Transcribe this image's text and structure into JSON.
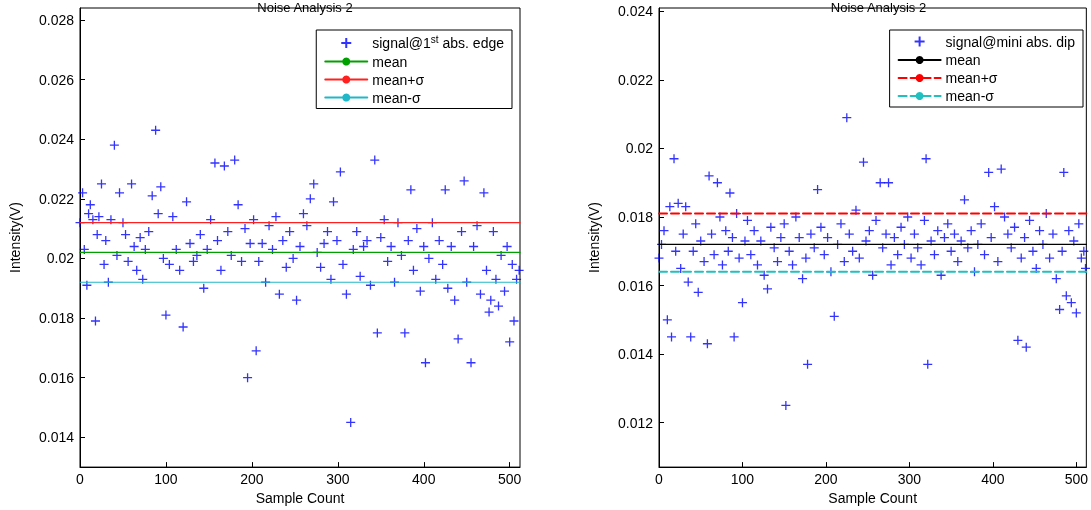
{
  "chart_data": [
    {
      "type": "scatter",
      "title": "Noise Analysis 2",
      "xlabel": "Sample Count",
      "ylabel": "Intensity(V)",
      "xlim": [
        0,
        512
      ],
      "xticks": [
        0,
        100,
        200,
        300,
        400,
        500
      ],
      "ylim": [
        0.013,
        0.0284
      ],
      "yticks": [
        0.014,
        0.016,
        0.018,
        0.02,
        0.022,
        0.024,
        0.026,
        0.028
      ],
      "legend": "top right",
      "series": [
        {
          "name": "signal@1$^{st}$ abs. edge",
          "marker": "cross",
          "color": "#0000ff",
          "x": [
            0,
            3,
            5,
            8,
            10,
            12,
            15,
            18,
            20,
            22,
            25,
            28,
            30,
            33,
            36,
            40,
            43,
            46,
            50,
            53,
            56,
            60,
            63,
            66,
            70,
            73,
            76,
            80,
            84,
            88,
            91,
            94,
            97,
            100,
            104,
            108,
            112,
            116,
            120,
            124,
            128,
            132,
            136,
            140,
            144,
            148,
            152,
            157,
            160,
            164,
            168,
            172,
            176,
            180,
            184,
            188,
            192,
            195,
            198,
            202,
            205,
            208,
            212,
            216,
            220,
            224,
            228,
            232,
            236,
            240,
            244,
            248,
            252,
            256,
            260,
            264,
            268,
            272,
            276,
            280,
            284,
            288,
            292,
            295,
            299,
            303,
            306,
            310,
            315,
            318,
            322,
            326,
            330,
            334,
            338,
            343,
            346,
            350,
            354,
            358,
            362,
            366,
            370,
            374,
            378,
            382,
            385,
            388,
            392,
            396,
            400,
            402,
            406,
            410,
            414,
            418,
            422,
            425,
            428,
            432,
            436,
            440,
            444,
            447,
            450,
            455,
            458,
            462,
            466,
            470,
            473,
            476,
            478,
            481,
            484,
            487,
            490,
            494,
            497,
            500,
            503,
            505,
            508,
            511
          ],
          "values": [
            0.0212,
            0.0222,
            0.0203,
            0.0191,
            0.0215,
            0.0218,
            0.0213,
            0.0179,
            0.0208,
            0.0214,
            0.0225,
            0.0198,
            0.0206,
            0.0192,
            0.0213,
            0.0238,
            0.0201,
            0.0222,
            0.0212,
            0.0208,
            0.0199,
            0.0225,
            0.0204,
            0.0196,
            0.0207,
            0.0193,
            0.0203,
            0.0209,
            0.0221,
            0.0243,
            0.0215,
            0.0224,
            0.02,
            0.0181,
            0.0198,
            0.0214,
            0.0203,
            0.0196,
            0.0177,
            0.0219,
            0.0205,
            0.0199,
            0.0201,
            0.0208,
            0.019,
            0.0203,
            0.0213,
            0.0232,
            0.0206,
            0.0196,
            0.0231,
            0.0209,
            0.0201,
            0.0233,
            0.0218,
            0.0199,
            0.021,
            0.016,
            0.0205,
            0.0213,
            0.0169,
            0.0199,
            0.0205,
            0.0192,
            0.0211,
            0.0203,
            0.0214,
            0.0188,
            0.0206,
            0.0197,
            0.0209,
            0.02,
            0.0186,
            0.0204,
            0.0215,
            0.0211,
            0.022,
            0.0225,
            0.0202,
            0.0197,
            0.0205,
            0.0209,
            0.0193,
            0.0219,
            0.0206,
            0.0229,
            0.0198,
            0.0188,
            0.0145,
            0.0203,
            0.0209,
            0.0194,
            0.0204,
            0.0206,
            0.0191,
            0.0233,
            0.0175,
            0.0207,
            0.0213,
            0.0199,
            0.0204,
            0.0192,
            0.0212,
            0.0201,
            0.0175,
            0.0206,
            0.0223,
            0.0196,
            0.021,
            0.0189,
            0.0204,
            0.0165,
            0.02,
            0.0212,
            0.0193,
            0.0206,
            0.0198,
            0.0223,
            0.019,
            0.0204,
            0.0186,
            0.0173,
            0.0209,
            0.0226,
            0.0192,
            0.0165,
            0.0204,
            0.0211,
            0.0188,
            0.0222,
            0.0196,
            0.0182,
            0.0186,
            0.0209,
            0.0193,
            0.0184,
            0.0201,
            0.0189,
            0.0204,
            0.0172,
            0.0198,
            0.0179,
            0.0193,
            0.0196
          ]
        },
        {
          "name": "mean",
          "type": "line",
          "color": "#00a000",
          "x": [
            0,
            512
          ],
          "values": [
            0.0202,
            0.0202
          ]
        },
        {
          "name": "mean+σ",
          "type": "line",
          "color": "#ff2020",
          "x": [
            0,
            512
          ],
          "values": [
            0.0212,
            0.0212
          ]
        },
        {
          "name": "mean-σ",
          "type": "line",
          "color": "#20b8c8",
          "x": [
            0,
            512
          ],
          "values": [
            0.0192,
            0.0192
          ]
        }
      ]
    },
    {
      "type": "scatter",
      "title": "Noise Analysis 2",
      "xlabel": "Sample Count",
      "ylabel": "Intensity(V)",
      "xlim": [
        0,
        512
      ],
      "xticks": [
        0,
        100,
        200,
        300,
        400,
        500
      ],
      "ylim": [
        0.0107,
        0.0241
      ],
      "yticks": [
        0.012,
        0.014,
        0.016,
        0.018,
        0.02,
        0.022,
        0.024
      ],
      "legend": "top right",
      "series": [
        {
          "name": "signal@mini abs. dip",
          "marker": "cross",
          "color": "#0000ff",
          "x": [
            0,
            3,
            6,
            10,
            13,
            15,
            18,
            20,
            23,
            26,
            29,
            32,
            35,
            38,
            41,
            44,
            47,
            50,
            54,
            58,
            60,
            63,
            66,
            70,
            73,
            76,
            80,
            83,
            85,
            88,
            90,
            93,
            96,
            100,
            103,
            106,
            110,
            114,
            118,
            122,
            126,
            130,
            134,
            138,
            142,
            146,
            150,
            152,
            156,
            160,
            164,
            168,
            172,
            176,
            178,
            182,
            186,
            190,
            194,
            198,
            202,
            206,
            210,
            214,
            218,
            222,
            225,
            228,
            232,
            236,
            240,
            245,
            248,
            252,
            256,
            260,
            265,
            268,
            272,
            275,
            278,
            282,
            286,
            290,
            294,
            298,
            302,
            306,
            310,
            314,
            318,
            320,
            322,
            326,
            330,
            334,
            338,
            342,
            346,
            350,
            354,
            358,
            362,
            366,
            370,
            374,
            378,
            382,
            386,
            390,
            395,
            398,
            402,
            406,
            410,
            414,
            418,
            422,
            426,
            430,
            434,
            438,
            440,
            444,
            448,
            452,
            456,
            460,
            464,
            468,
            472,
            476,
            480,
            483,
            485,
            488,
            491,
            494,
            497,
            500,
            503,
            506,
            509,
            511
          ],
          "values": [
            0.0168,
            0.0172,
            0.0176,
            0.015,
            0.0183,
            0.0145,
            0.0197,
            0.017,
            0.0184,
            0.0165,
            0.0175,
            0.0183,
            0.0161,
            0.0145,
            0.017,
            0.0178,
            0.0158,
            0.0173,
            0.0167,
            0.0143,
            0.0192,
            0.0175,
            0.0169,
            0.019,
            0.018,
            0.0166,
            0.0176,
            0.017,
            0.0187,
            0.0174,
            0.0145,
            0.0181,
            0.0168,
            0.0155,
            0.0173,
            0.0179,
            0.0169,
            0.0176,
            0.0166,
            0.0173,
            0.0163,
            0.0159,
            0.0177,
            0.0171,
            0.0167,
            0.0174,
            0.0178,
            0.0125,
            0.017,
            0.0166,
            0.018,
            0.0174,
            0.0162,
            0.0168,
            0.0137,
            0.0175,
            0.0171,
            0.0188,
            0.0177,
            0.0169,
            0.0174,
            0.0164,
            0.0151,
            0.0172,
            0.0178,
            0.0167,
            0.0209,
            0.0175,
            0.017,
            0.0182,
            0.0168,
            0.0196,
            0.0173,
            0.0176,
            0.0163,
            0.0179,
            0.019,
            0.0171,
            0.0175,
            0.019,
            0.0166,
            0.0174,
            0.0169,
            0.0177,
            0.0172,
            0.018,
            0.0168,
            0.0175,
            0.0171,
            0.0166,
            0.0179,
            0.0197,
            0.0137,
            0.0173,
            0.0169,
            0.0176,
            0.0163,
            0.0174,
            0.0178,
            0.017,
            0.0175,
            0.0167,
            0.0173,
            0.0185,
            0.0171,
            0.0176,
            0.0164,
            0.0172,
            0.0178,
            0.0169,
            0.0193,
            0.0174,
            0.0183,
            0.0167,
            0.0194,
            0.018,
            0.0175,
            0.0171,
            0.0177,
            0.0144,
            0.0168,
            0.0174,
            0.0142,
            0.0179,
            0.017,
            0.0165,
            0.0176,
            0.0172,
            0.0181,
            0.0168,
            0.0175,
            0.0162,
            0.0153,
            0.017,
            0.0193,
            0.0157,
            0.0176,
            0.0155,
            0.0173,
            0.0152,
            0.0178,
            0.0168,
            0.017,
            0.0165
          ]
        },
        {
          "name": "mean",
          "type": "line",
          "color": "#000000",
          "x": [
            0,
            512
          ],
          "values": [
            0.0172,
            0.0172
          ]
        },
        {
          "name": "mean+σ",
          "type": "line",
          "color": "#ff0000",
          "line_style": "dashed",
          "x": [
            0,
            512
          ],
          "values": [
            0.0181,
            0.0181
          ]
        },
        {
          "name": "mean-σ",
          "type": "line",
          "color": "#20c0c0",
          "line_style": "dashed",
          "x": [
            0,
            512
          ],
          "values": [
            0.0164,
            0.0164
          ]
        }
      ]
    }
  ]
}
